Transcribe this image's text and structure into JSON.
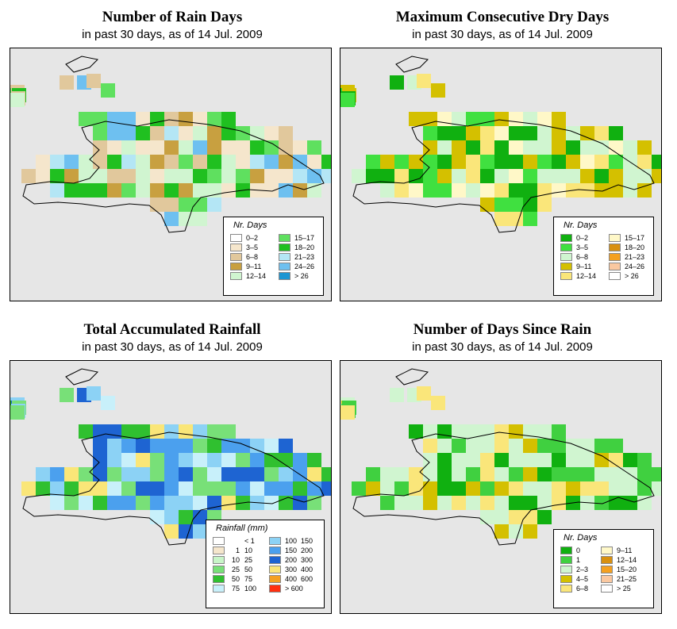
{
  "panels": [
    {
      "title": "Number of Rain Days",
      "subtitle": "in past 30 days, as of  14 Jul. 2009",
      "legend": {
        "title": "Nr. Days",
        "items": [
          {
            "label": "0–2",
            "color": "#ffffff"
          },
          {
            "label": "3–5",
            "color": "#f5e6cc"
          },
          {
            "label": "6–8",
            "color": "#e1c89c"
          },
          {
            "label": "9–11",
            "color": "#c8a040"
          },
          {
            "label": "12–14",
            "color": "#d0f5d0"
          },
          {
            "label": "15–17",
            "color": "#5fe05f"
          },
          {
            "label": "18–20",
            "color": "#20c020"
          },
          {
            "label": "21–23",
            "color": "#b4e6f5"
          },
          {
            "label": "24–26",
            "color": "#6ec0f0"
          },
          {
            "label": "> 26",
            "color": "#1e96d2"
          }
        ]
      }
    },
    {
      "title": "Maximum Consecutive Dry Days",
      "subtitle": "in past 30 days, as of  14 Jul. 2009",
      "legend": {
        "title": "Nr. Days",
        "items": [
          {
            "label": "0–2",
            "color": "#10b010"
          },
          {
            "label": "3–5",
            "color": "#40e040"
          },
          {
            "label": "6–8",
            "color": "#d0f5d0"
          },
          {
            "label": "9–11",
            "color": "#d4c000"
          },
          {
            "label": "12–14",
            "color": "#fae67a"
          },
          {
            "label": "15–17",
            "color": "#fff8c8"
          },
          {
            "label": "18–20",
            "color": "#d89010"
          },
          {
            "label": "21–23",
            "color": "#f4a020"
          },
          {
            "label": "24–26",
            "color": "#fac8a0"
          },
          {
            "label": "> 26",
            "color": "#ffffff"
          }
        ]
      }
    },
    {
      "title": "Total Accumulated Rainfall",
      "subtitle": "in past 30 days, as of  14 Jul. 2009",
      "legend": {
        "title": "Rainfall (mm)",
        "items": [
          {
            "lo": "",
            "hi": "< 1",
            "color": "#ffffff"
          },
          {
            "lo": "1",
            "hi": "10",
            "color": "#f5e6cc"
          },
          {
            "lo": "10",
            "hi": "25",
            "color": "#c8f5c8"
          },
          {
            "lo": "25",
            "hi": "50",
            "color": "#78e078"
          },
          {
            "lo": "50",
            "hi": "75",
            "color": "#30c030"
          },
          {
            "lo": "75",
            "hi": "100",
            "color": "#c8f0fa"
          },
          {
            "lo": "100",
            "hi": "150",
            "color": "#8cd2f5"
          },
          {
            "lo": "150",
            "hi": "200",
            "color": "#4ba0ee"
          },
          {
            "lo": "200",
            "hi": "300",
            "color": "#1e64d2"
          },
          {
            "lo": "300",
            "hi": "400",
            "color": "#fae678"
          },
          {
            "lo": "400",
            "hi": "600",
            "color": "#f4a020"
          },
          {
            "lo": "> 600",
            "hi": "",
            "color": "#ff3010"
          }
        ]
      }
    },
    {
      "title": "Number of Days Since Rain",
      "subtitle": "in past 30 days, as of  14 Jul. 2009",
      "legend": {
        "title": "Nr. Days",
        "items": [
          {
            "label": "0",
            "color": "#10b010"
          },
          {
            "label": "1",
            "color": "#40d040"
          },
          {
            "label": "2–3",
            "color": "#d0f5d0"
          },
          {
            "label": "4–5",
            "color": "#d4c000"
          },
          {
            "label": "6–8",
            "color": "#fae67a"
          },
          {
            "label": "9–11",
            "color": "#fff8c8"
          },
          {
            "label": "12–14",
            "color": "#d89010"
          },
          {
            "label": "15–20",
            "color": "#f4a020"
          },
          {
            "label": "21–25",
            "color": "#fac8a0"
          },
          {
            "label": "> 25",
            "color": "#ffffff"
          }
        ]
      }
    }
  ],
  "map_background": "#e6e6e6"
}
